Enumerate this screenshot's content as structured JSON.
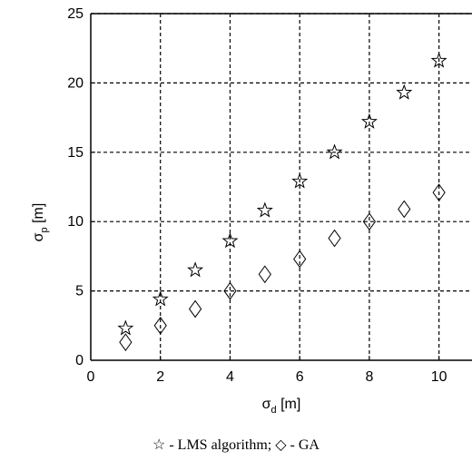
{
  "chart_data": {
    "type": "scatter",
    "xlabel": {
      "symbol": "σ",
      "sub": "d",
      "unit": " [m]"
    },
    "ylabel": {
      "symbol": "σ",
      "sub": "p",
      "unit": " [m]"
    },
    "xlim": [
      0,
      11
    ],
    "ylim": [
      0,
      25
    ],
    "xticks": [
      0,
      2,
      4,
      6,
      8,
      10
    ],
    "yticks": [
      0,
      5,
      10,
      15,
      20,
      25
    ],
    "grid": true,
    "grid_style": "dashed",
    "series": [
      {
        "marker": "star",
        "x": [
          1,
          2,
          3,
          4,
          5,
          6,
          7,
          8,
          9,
          10
        ],
        "y": [
          2.3,
          4.4,
          6.5,
          8.6,
          10.8,
          12.9,
          15.0,
          17.2,
          19.3,
          21.6
        ]
      },
      {
        "marker": "diamond",
        "x": [
          1,
          2,
          3,
          4,
          5,
          6,
          7,
          8,
          9,
          10
        ],
        "y": [
          1.3,
          2.5,
          3.7,
          5.0,
          6.2,
          7.3,
          8.8,
          10.0,
          10.9,
          12.1
        ]
      }
    ]
  },
  "caption": {
    "star_symbol": "☆",
    "star_text": " - LMS algorithm; ",
    "diamond_symbol": "◇",
    "diamond_text": " - GA"
  }
}
